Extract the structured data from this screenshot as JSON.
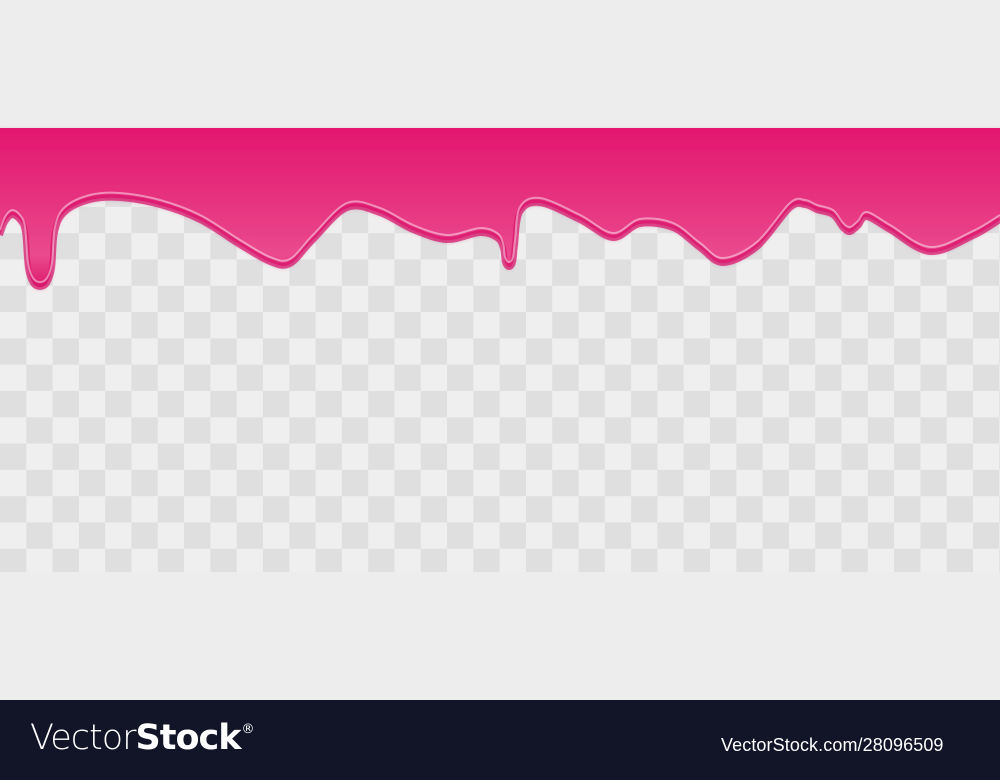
{
  "colors": {
    "background": "#ededed",
    "drip_pink": "#e3176f",
    "drip_highlight": "#ef5a98",
    "checker_light": "#efefef",
    "checker_dark": "#dfdfe0",
    "footer_bg": "#121427",
    "footer_text": "#ffffff"
  },
  "footer": {
    "logo_part1": "Vector",
    "logo_part2": "Stock",
    "logo_registered": "®",
    "image_url_text": "VectorStock.com/28096509"
  }
}
